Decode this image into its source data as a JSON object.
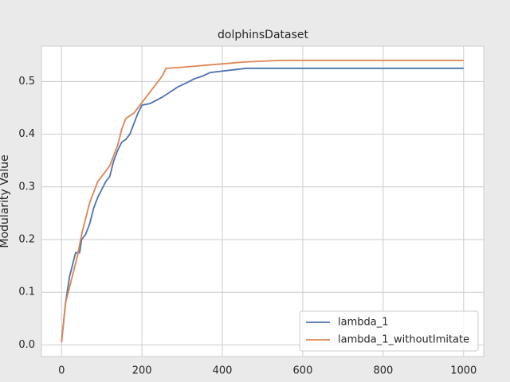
{
  "chart_data": {
    "type": "line",
    "title": "dolphinsDataset",
    "y_label": "Modularity Value",
    "xlim": [
      -50,
      1050
    ],
    "xticks": [
      0,
      200,
      400,
      600,
      800,
      1000
    ],
    "ylim": [
      -0.022,
      0.567
    ],
    "yticks": [
      0.0,
      0.1,
      0.2,
      0.3,
      0.4,
      0.5
    ],
    "grid": true,
    "legend": "lower right",
    "series": [
      {
        "name": "lambda_1",
        "color": "#4c72b0",
        "x": [
          0,
          10,
          20,
          30,
          35,
          45,
          50,
          60,
          70,
          80,
          90,
          100,
          110,
          120,
          130,
          140,
          150,
          160,
          170,
          180,
          190,
          200,
          220,
          250,
          290,
          310,
          330,
          350,
          370,
          460,
          1000
        ],
        "values": [
          0.005,
          0.08,
          0.13,
          0.16,
          0.175,
          0.175,
          0.2,
          0.21,
          0.23,
          0.26,
          0.28,
          0.295,
          0.31,
          0.32,
          0.35,
          0.37,
          0.385,
          0.39,
          0.4,
          0.42,
          0.44,
          0.455,
          0.458,
          0.47,
          0.49,
          0.497,
          0.505,
          0.51,
          0.517,
          0.525,
          0.525
        ]
      },
      {
        "name": "lambda_1_withoutImitate",
        "color": "#dd8452",
        "x": [
          0,
          10,
          20,
          30,
          40,
          50,
          60,
          70,
          80,
          90,
          100,
          110,
          120,
          130,
          140,
          150,
          160,
          170,
          180,
          190,
          200,
          220,
          230,
          250,
          260,
          300,
          455,
          545,
          1000
        ],
        "values": [
          0.005,
          0.08,
          0.11,
          0.14,
          0.17,
          0.21,
          0.24,
          0.27,
          0.29,
          0.31,
          0.32,
          0.33,
          0.34,
          0.36,
          0.38,
          0.41,
          0.43,
          0.435,
          0.44,
          0.45,
          0.46,
          0.48,
          0.49,
          0.51,
          0.525,
          0.527,
          0.537,
          0.54,
          0.54
        ]
      }
    ]
  }
}
